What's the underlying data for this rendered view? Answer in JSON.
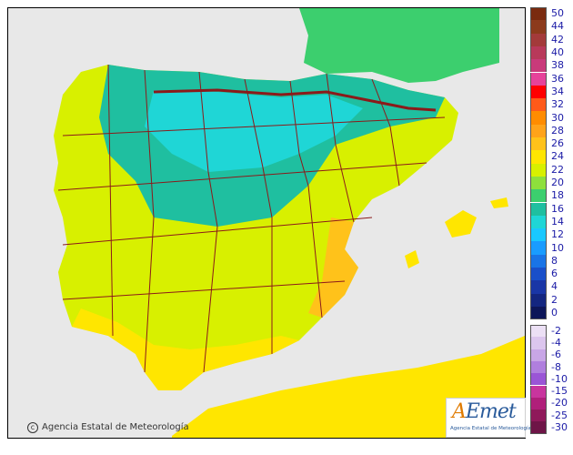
{
  "map": {
    "copyright": "Agencia Estatal de Meteorología",
    "logo": {
      "text_a": "A",
      "text_e": "E",
      "text_rest": "met",
      "subtitle": "Agencia Estatal de Meteorología"
    }
  },
  "legend": {
    "upper": [
      {
        "label": "50",
        "color": "#7a2b0f"
      },
      {
        "label": "44",
        "color": "#8c3a1c"
      },
      {
        "label": "42",
        "color": "#a33a3a"
      },
      {
        "label": "40",
        "color": "#b8395a"
      },
      {
        "label": "38",
        "color": "#c93a7a"
      },
      {
        "label": "36",
        "color": "#e6439a"
      },
      {
        "label": "34",
        "color": "#ff0000"
      },
      {
        "label": "32",
        "color": "#ff5a1a"
      },
      {
        "label": "30",
        "color": "#ff8c00"
      },
      {
        "label": "28",
        "color": "#ffa31a"
      },
      {
        "label": "26",
        "color": "#ffc21a"
      },
      {
        "label": "24",
        "color": "#ffe600"
      },
      {
        "label": "22",
        "color": "#d8f000"
      },
      {
        "label": "20",
        "color": "#8ee03c"
      },
      {
        "label": "18",
        "color": "#3ccf6e"
      },
      {
        "label": "16",
        "color": "#1fbfa0"
      },
      {
        "label": "14",
        "color": "#1fd6d6"
      },
      {
        "label": "12",
        "color": "#1ac8ff"
      },
      {
        "label": "10",
        "color": "#1a9cff"
      },
      {
        "label": "8",
        "color": "#1a74e6"
      },
      {
        "label": "6",
        "color": "#1a4fc9"
      },
      {
        "label": "4",
        "color": "#1a36a6"
      },
      {
        "label": "2",
        "color": "#142680"
      },
      {
        "label": "0",
        "color": "#0d1659"
      }
    ],
    "lower": [
      {
        "label": "-2",
        "color": "#ece0f5"
      },
      {
        "label": "-4",
        "color": "#dcc6ee"
      },
      {
        "label": "-6",
        "color": "#c8a6e6"
      },
      {
        "label": "-8",
        "color": "#b07fde"
      },
      {
        "label": "-10",
        "color": "#9a55d6"
      },
      {
        "label": "-15",
        "color": "#c8359e"
      },
      {
        "label": "-20",
        "color": "#b01f7a"
      },
      {
        "label": "-25",
        "color": "#8f1a5a"
      },
      {
        "label": "-30",
        "color": "#6e1547"
      }
    ]
  },
  "colors": {
    "sea": "#e8e8e8",
    "land_base": "#8ee03c",
    "france": "#3ccf6e",
    "cool": "#1fbfa0",
    "cold": "#1fd6d6",
    "warm": "#d8f000",
    "hot": "#ffe600",
    "hotter": "#ffc21a",
    "borders": "#8b1a1a"
  }
}
